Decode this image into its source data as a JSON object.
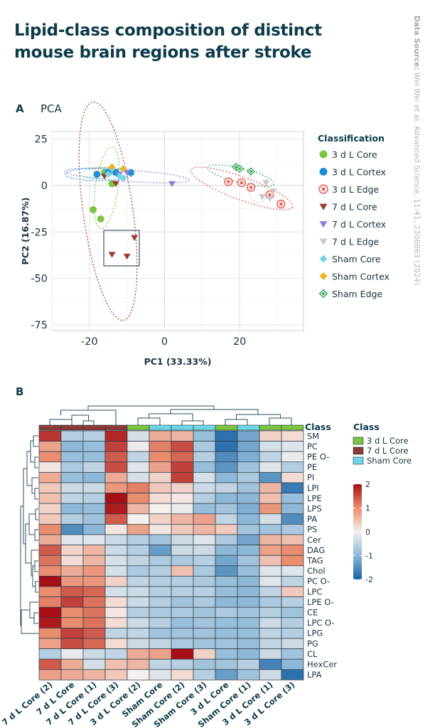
{
  "title": "Lipid-class composition of distinct mouse brain regions after stroke",
  "source": {
    "label": "Data Source:",
    "text": "Wei Wei et al. Advanced Science, 11:41, 2306863 (2024)"
  },
  "panel_a": {
    "letter": "A",
    "name": "PCA"
  },
  "panel_b": {
    "letter": "B"
  },
  "chart_data": [
    {
      "type": "scatter",
      "title": "PCA",
      "xlabel": "PC1 (33.33%)",
      "ylabel": "PC2 (16.87%)",
      "xlim": [
        -30,
        37
      ],
      "ylim": [
        -78,
        29
      ],
      "xticks": [
        -20,
        0,
        20
      ],
      "yticks": [
        25,
        0,
        -25,
        -50,
        -75
      ],
      "legend_title": "Classification",
      "series": [
        {
          "name": "3 d L Core",
          "color": "#7cc540",
          "marker": "circle",
          "points": [
            [
              -16,
              7
            ],
            [
              -19,
              -13
            ],
            [
              -17,
              -18
            ],
            [
              -14,
              1
            ]
          ]
        },
        {
          "name": "3 d L Cortex",
          "color": "#1f90d6",
          "marker": "circle",
          "points": [
            [
              -18,
              6
            ],
            [
              -15,
              7
            ],
            [
              -13,
              7
            ],
            [
              -9,
              7
            ]
          ]
        },
        {
          "name": "3 d L Edge",
          "color": "#e0584e",
          "marker": "ring",
          "points": [
            [
              17,
              2
            ],
            [
              20.5,
              1.5
            ],
            [
              23,
              -1
            ],
            [
              28,
              -5
            ],
            [
              31,
              -10
            ]
          ]
        },
        {
          "name": "7 d L Core",
          "color": "#9b3a2e",
          "marker": "triangle-down",
          "points": [
            [
              -8,
              -28
            ],
            [
              -14,
              -37
            ],
            [
              -10,
              -38
            ],
            [
              -16,
              5
            ],
            [
              -13,
              1
            ]
          ]
        },
        {
          "name": "7 d L Cortex",
          "color": "#8c7fd8",
          "marker": "triangle-down",
          "points": [
            [
              -12,
              6
            ],
            [
              -10,
              7
            ],
            [
              2,
              1
            ]
          ]
        },
        {
          "name": "7 d L Edge",
          "color": "#c8c8c8",
          "marker": "triangle-down",
          "points": [
            [
              27,
              1.5
            ],
            [
              29,
              -3
            ],
            [
              26,
              -6
            ],
            [
              28,
              -7
            ]
          ]
        },
        {
          "name": "Sham Core",
          "color": "#6fd6e6",
          "marker": "diamond",
          "points": [
            [
              -15,
              6
            ],
            [
              -14,
              9
            ],
            [
              -12,
              5
            ],
            [
              -11,
              4
            ]
          ]
        },
        {
          "name": "Sham Cortex",
          "color": "#f0b428",
          "marker": "diamond",
          "points": [
            [
              -14,
              10
            ],
            [
              -11,
              9
            ]
          ]
        },
        {
          "name": "Sham Edge",
          "color": "#3ea564",
          "marker": "diamond-open",
          "points": [
            [
              19,
              10
            ],
            [
              20,
              9
            ],
            [
              23,
              7.5
            ]
          ]
        }
      ]
    },
    {
      "type": "heatmap",
      "legend_title": "Class",
      "class_legend": [
        {
          "name": "3 d L Core",
          "color": "#7cc540"
        },
        {
          "name": "7 d L Core",
          "color": "#8b3a38"
        },
        {
          "name": "Sham Core",
          "color": "#6fd6e6"
        }
      ],
      "colorbar": {
        "ticks": [
          "2",
          "1",
          "0",
          "-1",
          "-2"
        ],
        "range": [
          -2,
          2
        ]
      },
      "class_bar_label": "Class",
      "columns": [
        "7 d L Core (2)",
        "7 d L Core",
        "7 d L Core (1)",
        "7 d L Core (3)",
        "3 d L Core (2)",
        "Sham Core",
        "Sham Core (2)",
        "Sham Core (3)",
        "3 d L Core",
        "Sham Core (1)",
        "3 d L Core (1)",
        "3 d L Core (3)"
      ],
      "column_classes": [
        "7 d L Core",
        "7 d L Core",
        "7 d L Core",
        "7 d L Core",
        "3 d L Core",
        "Sham Core",
        "Sham Core",
        "Sham Core",
        "3 d L Core",
        "Sham Core",
        "3 d L Core",
        "3 d L Core"
      ],
      "rows": [
        "SM",
        "PC",
        "PE O-",
        "PE",
        "PI",
        "LPI",
        "LPE",
        "LPS",
        "PA",
        "PS",
        "Cer",
        "DAG",
        "TAG",
        "Chol",
        "PC O-",
        "LPC",
        "LPE O-",
        "CE",
        "LPC O-",
        "LPG",
        "PG",
        "CL",
        "HexCer",
        "LPA"
      ],
      "values": [
        [
          1.7,
          -0.6,
          -0.6,
          1.8,
          -0.3,
          0.7,
          0.6,
          -0.9,
          -1.8,
          -1.2,
          0.3,
          0.2
        ],
        [
          0.8,
          -1.0,
          -0.9,
          1.6,
          -0.1,
          1.1,
          1.5,
          -0.7,
          -1.8,
          -1.2,
          -0.3,
          -0.2
        ],
        [
          1.0,
          -0.9,
          -0.9,
          1.4,
          -0.5,
          1.0,
          1.3,
          -0.6,
          -1.5,
          -1.1,
          -0.5,
          -0.1
        ],
        [
          0.1,
          -0.7,
          -0.5,
          1.5,
          -0.2,
          0.8,
          1.6,
          -0.9,
          -1.4,
          -0.8,
          -0.2,
          -0.6
        ],
        [
          0.7,
          -0.9,
          -1.0,
          0.7,
          -0.3,
          0.3,
          1.6,
          -0.3,
          -1.0,
          -0.7,
          -1.4,
          0.2
        ],
        [
          0.4,
          -0.4,
          -0.4,
          0.9,
          1.1,
          0.4,
          0.3,
          -0.4,
          -0.5,
          -0.8,
          0.6,
          -1.7
        ],
        [
          0.5,
          -0.5,
          -0.6,
          2.0,
          1.0,
          0.2,
          0.1,
          -0.6,
          -1.0,
          -1.0,
          0.5,
          -0.9
        ],
        [
          0.3,
          -1.0,
          -0.9,
          1.9,
          0.6,
          0.0,
          -0.1,
          -0.9,
          -0.8,
          -1.1,
          0.9,
          -1.0
        ],
        [
          0.4,
          -0.6,
          -0.8,
          1.4,
          0.0,
          0.3,
          0.6,
          0.8,
          -0.5,
          -1.0,
          -0.3,
          -1.5
        ],
        [
          1.0,
          -1.5,
          -1.0,
          0.1,
          0.8,
          0.1,
          0.4,
          0.6,
          0.4,
          -0.8,
          -0.8,
          -0.7
        ],
        [
          0.7,
          -0.2,
          -0.2,
          -0.4,
          -0.6,
          -0.8,
          -0.4,
          -0.2,
          -0.7,
          -1.2,
          0.6,
          0.5
        ],
        [
          1.4,
          0.3,
          0.6,
          -0.4,
          -0.6,
          -1.3,
          -0.4,
          -0.4,
          -1.0,
          -1.0,
          0.8,
          1.0
        ],
        [
          1.2,
          0.2,
          0.6,
          -0.3,
          -0.5,
          -0.7,
          -0.7,
          -0.6,
          -1.2,
          -0.8,
          0.5,
          1.0
        ],
        [
          1.0,
          0.7,
          0.9,
          -0.3,
          -0.7,
          -0.6,
          0.5,
          -0.7,
          -1.4,
          -0.9,
          -0.2,
          -0.2
        ],
        [
          2.2,
          0.9,
          0.9,
          0.3,
          -0.5,
          -0.6,
          -0.6,
          -0.7,
          -0.9,
          -1.0,
          -0.2,
          -0.5
        ],
        [
          1.0,
          1.4,
          1.3,
          -0.3,
          -0.4,
          -0.6,
          -0.6,
          -0.6,
          -0.9,
          -1.0,
          -0.5,
          0.4
        ],
        [
          1.1,
          1.6,
          1.2,
          0.2,
          -0.4,
          -0.6,
          -0.8,
          -0.7,
          -1.0,
          -1.0,
          -0.7,
          -0.6
        ],
        [
          2.0,
          1.0,
          1.2,
          0.1,
          -0.6,
          -0.7,
          -0.7,
          -0.8,
          -0.7,
          -0.8,
          -0.6,
          -0.8
        ],
        [
          1.9,
          1.0,
          1.2,
          0.2,
          -0.4,
          -0.6,
          -0.9,
          -0.8,
          -0.9,
          -0.9,
          -0.4,
          -0.6
        ],
        [
          1.0,
          1.6,
          1.4,
          -0.5,
          -0.5,
          -0.8,
          -0.8,
          -0.8,
          -0.9,
          -0.9,
          -0.5,
          -0.6
        ],
        [
          0.8,
          1.5,
          1.3,
          0.2,
          -0.4,
          -0.5,
          -0.7,
          -0.8,
          -0.8,
          -0.9,
          -0.5,
          -0.4
        ],
        [
          -0.6,
          -0.1,
          -0.4,
          -0.5,
          0.7,
          0.8,
          2.0,
          0.3,
          -0.9,
          -1.0,
          -0.4,
          -0.8
        ],
        [
          1.4,
          0.7,
          -0.3,
          0.5,
          0.6,
          -0.5,
          -0.6,
          -0.8,
          -0.8,
          -0.6,
          -1.6,
          -1.0
        ],
        [
          0.8,
          0.7,
          0.6,
          0.4,
          0.0,
          -0.2,
          0.2,
          -0.6,
          -1.3,
          -0.8,
          -0.4,
          -1.8
        ]
      ]
    }
  ]
}
